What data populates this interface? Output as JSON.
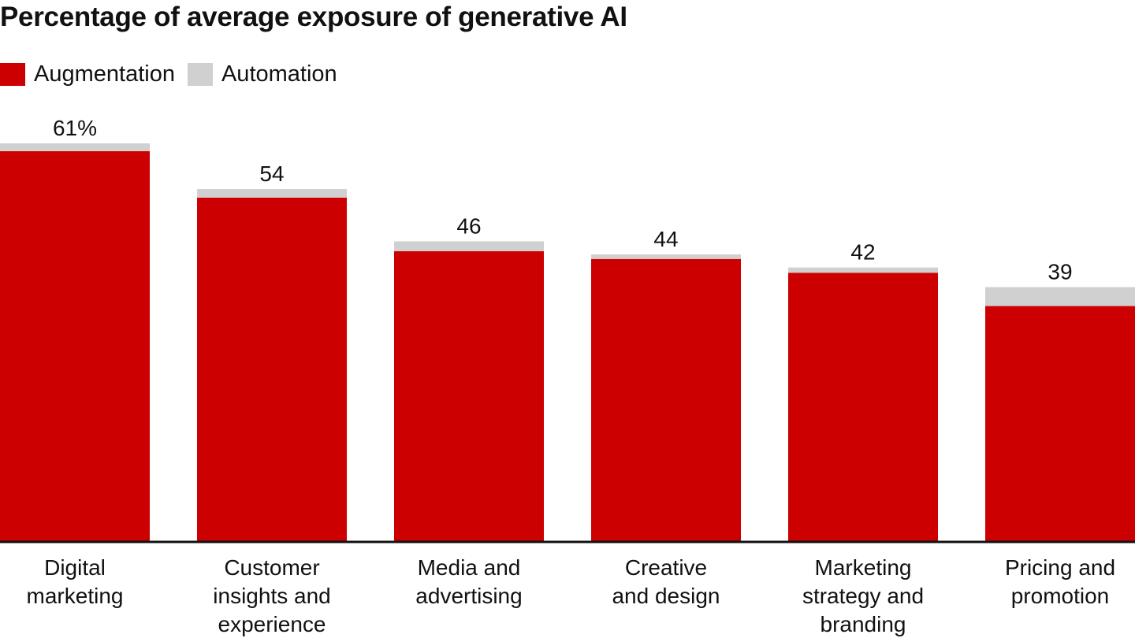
{
  "chart_data": {
    "type": "bar",
    "stacked": true,
    "title": "Percentage of average exposure of generative AI",
    "xlabel": "",
    "ylabel": "",
    "ylim": [
      0,
      61
    ],
    "grid": false,
    "legend_position": "top-left",
    "categories": [
      [
        "Digital",
        "marketing"
      ],
      [
        "Customer",
        "insights and",
        "experience"
      ],
      [
        "Media and",
        "advertising"
      ],
      [
        "Creative",
        "and design"
      ],
      [
        "Marketing",
        "strategy and",
        "branding"
      ],
      [
        "Pricing and",
        "promotion"
      ]
    ],
    "totals": [
      61,
      54,
      46,
      44,
      42,
      39
    ],
    "total_labels": [
      "61%",
      "54",
      "46",
      "44",
      "42",
      "39"
    ],
    "series": [
      {
        "name": "Augmentation",
        "color": "#cc0000",
        "values": [
          59.8,
          52.7,
          44.5,
          43.3,
          41.2,
          36.1
        ]
      },
      {
        "name": "Automation",
        "color": "#d0d0d0",
        "values": [
          1.2,
          1.3,
          1.5,
          0.7,
          0.8,
          2.9
        ]
      }
    ]
  }
}
